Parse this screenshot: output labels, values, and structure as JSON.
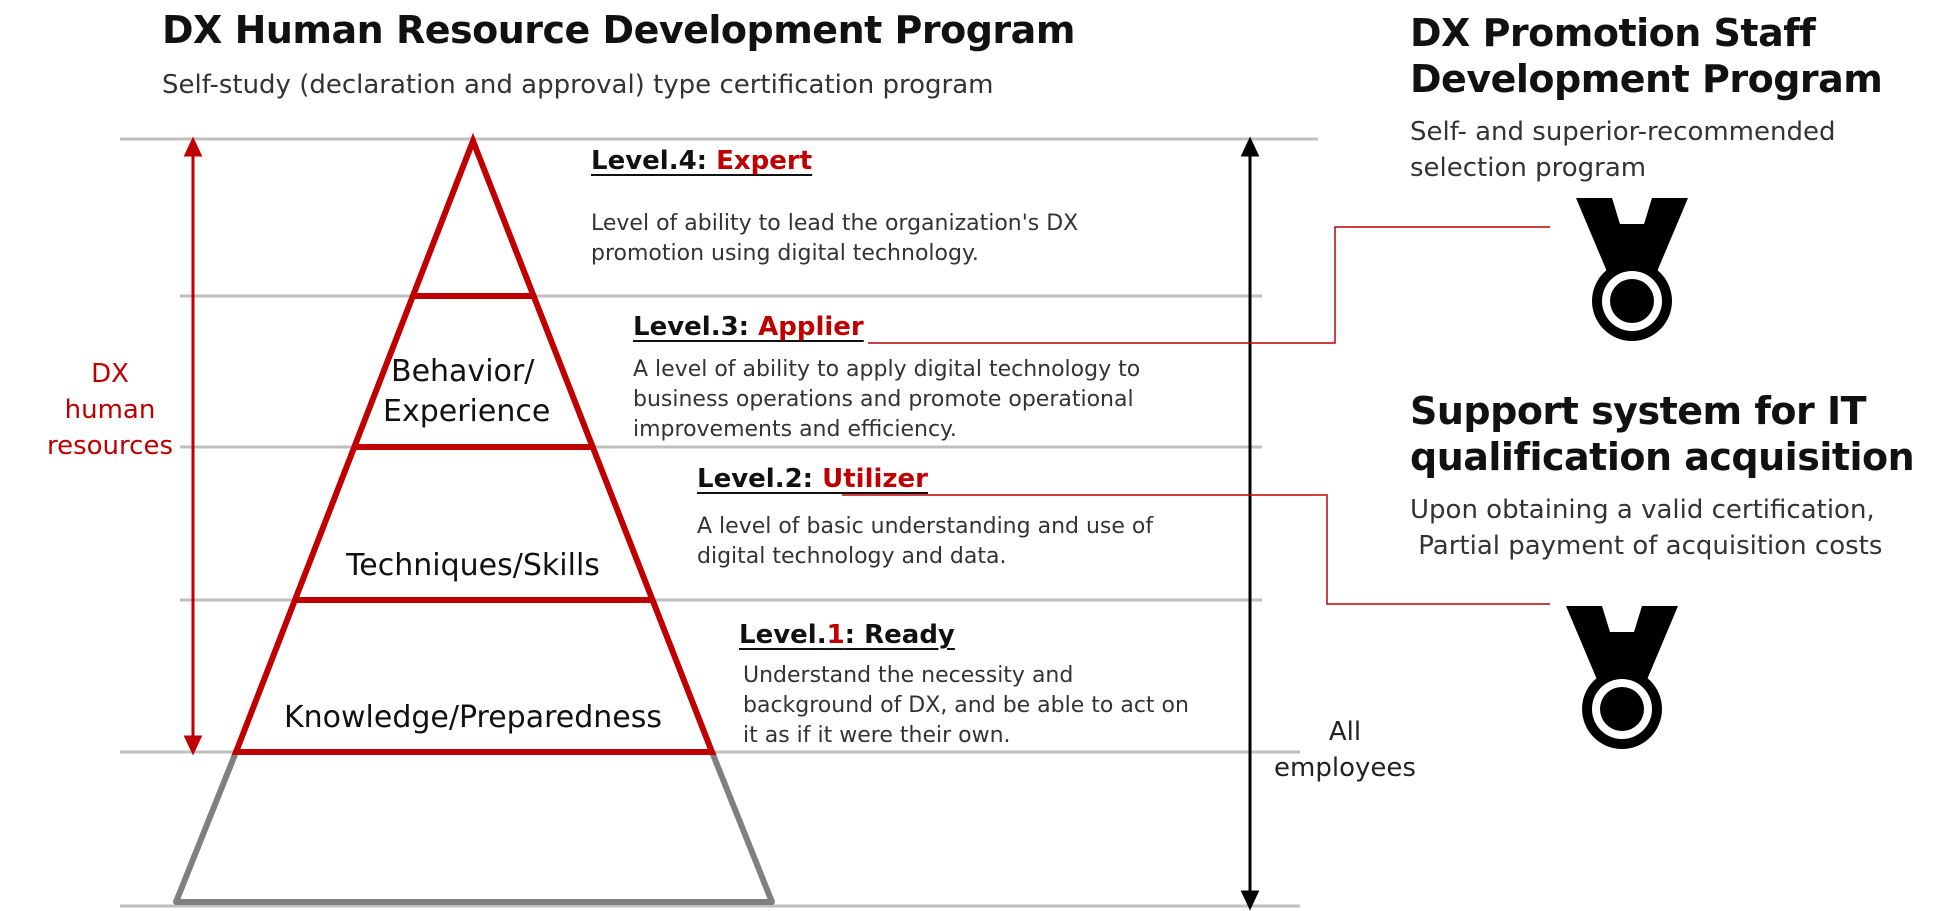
{
  "left": {
    "title": "DX Human Resource Development Program",
    "subtitle": "Self-study (declaration and approval) type certification program"
  },
  "pyramid": {
    "tiers": [
      "Behavior/",
      "Experience",
      "Techniques/Skills",
      "Knowledge/Preparedness"
    ],
    "side_label": [
      "DX",
      "human",
      "resources"
    ],
    "all_employees": [
      "All",
      "employees"
    ]
  },
  "levels": [
    {
      "prefix": "Level.4: ",
      "name": "Expert",
      "desc": [
        "Level of ability to lead the organization's DX",
        "promotion using digital technology."
      ]
    },
    {
      "prefix": "Level.3: ",
      "name": "Applier",
      "desc": [
        "A level of ability to apply digital technology to",
        "business operations and promote operational",
        "improvements and efficiency."
      ]
    },
    {
      "prefix": "Level.2: ",
      "name": "Utilizer",
      "desc": [
        "A level of basic understanding and use of",
        "digital technology and data."
      ]
    },
    {
      "prefix_a": "Level.",
      "num": "1",
      "prefix_b": ": Ready",
      "desc": [
        "Understand the necessity and",
        "background of DX, and be able to act on",
        "it as if it were their own."
      ]
    }
  ],
  "right": {
    "promo_title": [
      "DX Promotion Staff",
      "Development Program"
    ],
    "promo_desc": [
      "Self- and superior-recommended",
      "selection program"
    ],
    "support_title": [
      "Support system for IT",
      "qualification acquisition"
    ],
    "support_desc": [
      "Upon obtaining a valid certification,",
      " Partial payment of acquisition costs"
    ]
  },
  "colors": {
    "accent": "#c00000",
    "gray_line": "#bfbfbf",
    "base_gray": "#808080"
  },
  "icons": [
    "medal-icon",
    "medal-icon"
  ]
}
